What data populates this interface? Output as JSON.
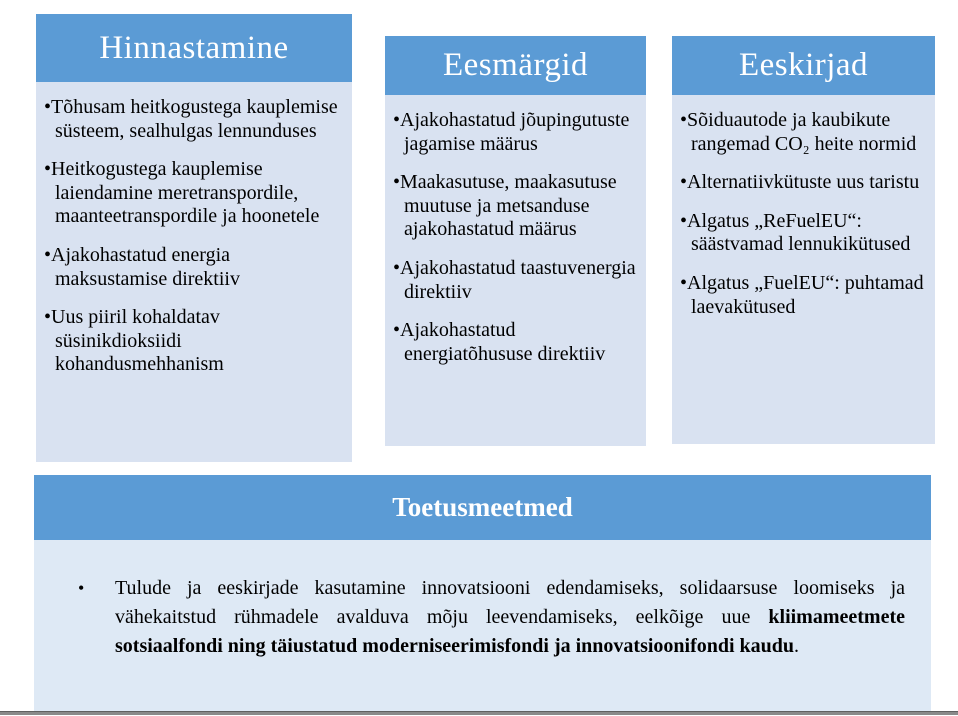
{
  "bullet_char": "•",
  "colors": {
    "header_blue": "#5B9BD5",
    "column_body_blue": "#D9E2F1",
    "support_body_blue": "#DEE9F5",
    "header_text": "#FFFFFF",
    "body_text": "#000000",
    "bottom_rule_gray": "#8a8a8a"
  },
  "columns": [
    {
      "title": "Hinnastamine",
      "items": [
        "Tõhusam heitkogustega kauplemise süsteem, sealhulgas lennunduses",
        "Heitkogustega kauplemise laiendamine meretranspordile, maanteetranspordile ja hoonetele",
        "Ajakohastatud energia maksustamise direktiiv",
        "Uus piiril kohaldatav süsinikdioksiidi kohandusmehhanism"
      ]
    },
    {
      "title": "Eesmärgid",
      "items": [
        "Ajakohastatud jõupingutuste jagamise määrus",
        "Maakasutuse, maakasutuse muutuse ja metsanduse ajakohastatud määrus",
        "Ajakohastatud taastuvenergia direktiiv",
        "Ajakohastatud energiatõhususe direktiiv"
      ]
    },
    {
      "title": "Eeskirjad",
      "items": [
        "Sõiduautode ja kaubikute rangemad CO₂ heite normid",
        "Alternatiivkütuste uus taristu",
        "Algatus „ReFuelEU“: säästvamad lennukikütused",
        "Algatus „FuelEU“: puhtamad laevakütused"
      ]
    }
  ],
  "support": {
    "title": "Toetusmeetmed",
    "text_regular": "Tulude ja eeskirjade kasutamine innovatsiooni edendamiseks, solidaarsuse loomiseks ja vähekaitstud rühmadele avalduva mõju leevendamiseks, eelkõige uue ",
    "text_bold": "kliimameetmete sotsiaalfondi ning täiustatud moderniseerimisfondi ja innovatsioonifondi kaudu",
    "text_end": "."
  }
}
